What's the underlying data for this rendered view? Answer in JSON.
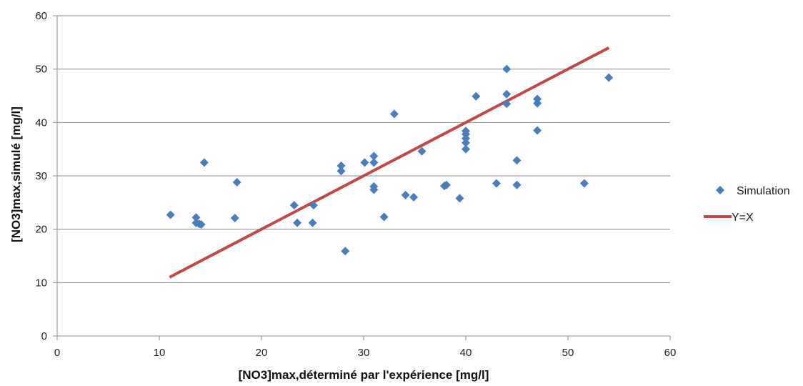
{
  "chart_data": {
    "type": "scatter",
    "title": "",
    "xlabel": "[NO3]max,déterminé par l'expérience [mg/l]",
    "ylabel": "[NO3]max,simulé [mg/l]",
    "xlim": [
      0,
      60
    ],
    "ylim": [
      0,
      60
    ],
    "xticks": [
      0,
      10,
      20,
      30,
      40,
      50,
      60
    ],
    "yticks": [
      0,
      10,
      20,
      30,
      40,
      50,
      60
    ],
    "grid": "horizontal",
    "legend_position": "right",
    "series": [
      {
        "name": "Simulation",
        "kind": "scatter",
        "marker": "diamond",
        "color": "#4a7ebb",
        "points": [
          [
            11.1,
            22.7
          ],
          [
            13.6,
            22.2
          ],
          [
            13.6,
            21.2
          ],
          [
            13.9,
            21.0
          ],
          [
            14.1,
            20.9
          ],
          [
            14.4,
            32.5
          ],
          [
            17.4,
            22.1
          ],
          [
            17.6,
            28.8
          ],
          [
            23.2,
            24.5
          ],
          [
            23.5,
            21.2
          ],
          [
            25.0,
            21.2
          ],
          [
            25.1,
            24.5
          ],
          [
            27.8,
            31.9
          ],
          [
            27.8,
            30.9
          ],
          [
            28.2,
            15.9
          ],
          [
            30.1,
            32.5
          ],
          [
            31.0,
            33.7
          ],
          [
            31.0,
            32.5
          ],
          [
            31.0,
            28.0
          ],
          [
            31.0,
            27.4
          ],
          [
            32.0,
            22.3
          ],
          [
            33.0,
            41.6
          ],
          [
            34.1,
            26.4
          ],
          [
            34.9,
            26.0
          ],
          [
            35.7,
            34.6
          ],
          [
            37.9,
            28.1
          ],
          [
            38.1,
            28.3
          ],
          [
            39.4,
            25.8
          ],
          [
            40.0,
            38.4
          ],
          [
            40.0,
            37.8
          ],
          [
            40.0,
            37.0
          ],
          [
            40.0,
            36.2
          ],
          [
            40.0,
            35.0
          ],
          [
            41.0,
            44.9
          ],
          [
            43.0,
            28.6
          ],
          [
            44.0,
            50.0
          ],
          [
            44.0,
            45.3
          ],
          [
            44.0,
            43.5
          ],
          [
            45.0,
            32.9
          ],
          [
            45.0,
            28.3
          ],
          [
            47.0,
            44.4
          ],
          [
            47.0,
            43.6
          ],
          [
            47.0,
            38.5
          ],
          [
            51.6,
            28.6
          ],
          [
            54.0,
            48.4
          ]
        ]
      },
      {
        "name": "Y=X",
        "kind": "line",
        "color": "#be4b48",
        "points": [
          [
            11.0,
            11.0
          ],
          [
            54.0,
            54.0
          ]
        ]
      }
    ]
  }
}
